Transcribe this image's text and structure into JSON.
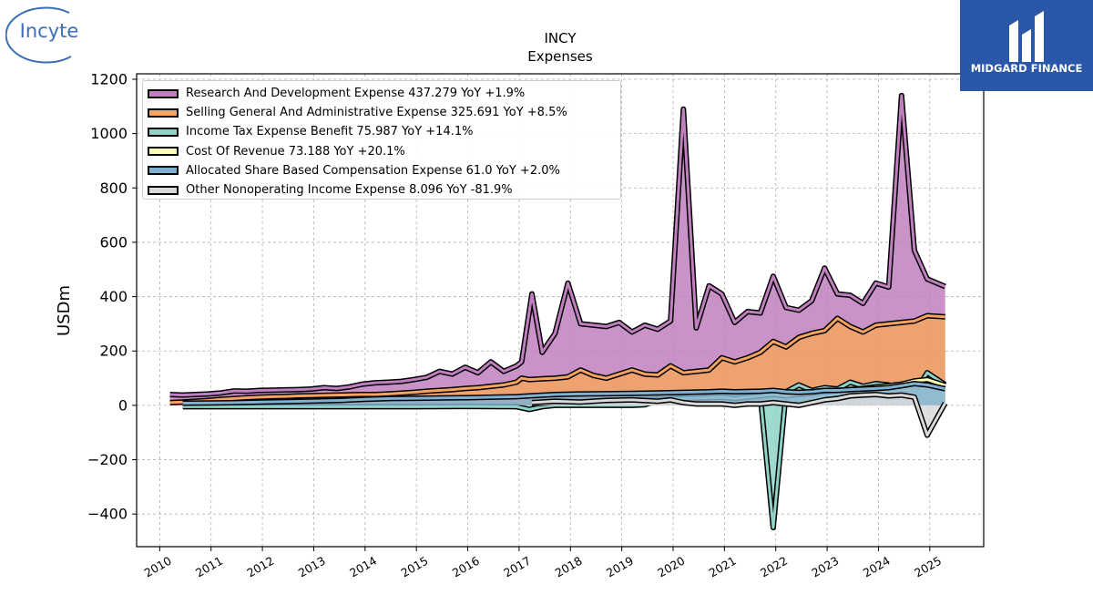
{
  "brand": {
    "logo_text": "Incyte",
    "watermark_text": "MIDGARD FINANCE"
  },
  "chart_data": {
    "type": "area",
    "title": "INCY",
    "subtitle": "Expenses",
    "xlabel": "",
    "ylabel": "USDm",
    "xlim": [
      2009.55,
      2026.05
    ],
    "ylim": [
      -520,
      1220
    ],
    "x_ticks": [
      "2010",
      "2011",
      "2012",
      "2013",
      "2014",
      "2015",
      "2016",
      "2017",
      "2018",
      "2019",
      "2020",
      "2021",
      "2022",
      "2023",
      "2024",
      "2025"
    ],
    "y_ticks": [
      -400,
      -200,
      0,
      200,
      400,
      600,
      800,
      1000,
      1200
    ],
    "grid": true,
    "legend_position": "top-left",
    "series": [
      {
        "name": "Research And Development Expense",
        "legend": "Research And Development Expense  437.279 YoY +1.9%",
        "color": "#c080c0",
        "points": [
          [
            2010.2,
            40
          ],
          [
            2010.45,
            38
          ],
          [
            2010.7,
            40
          ],
          [
            2010.95,
            42
          ],
          [
            2011.2,
            46
          ],
          [
            2011.45,
            53
          ],
          [
            2011.7,
            52
          ],
          [
            2011.95,
            55
          ],
          [
            2012.2,
            56
          ],
          [
            2012.45,
            57
          ],
          [
            2012.7,
            58
          ],
          [
            2012.95,
            60
          ],
          [
            2013.2,
            65
          ],
          [
            2013.45,
            62
          ],
          [
            2013.7,
            68
          ],
          [
            2013.95,
            78
          ],
          [
            2014.2,
            83
          ],
          [
            2014.45,
            85
          ],
          [
            2014.7,
            88
          ],
          [
            2014.95,
            95
          ],
          [
            2015.2,
            103
          ],
          [
            2015.45,
            125
          ],
          [
            2015.7,
            115
          ],
          [
            2015.95,
            140
          ],
          [
            2016.2,
            120
          ],
          [
            2016.45,
            160
          ],
          [
            2016.7,
            125
          ],
          [
            2016.95,
            145
          ],
          [
            2017.05,
            160
          ],
          [
            2017.25,
            410
          ],
          [
            2017.45,
            195
          ],
          [
            2017.7,
            265
          ],
          [
            2017.95,
            450
          ],
          [
            2018.2,
            300
          ],
          [
            2018.45,
            295
          ],
          [
            2018.7,
            290
          ],
          [
            2018.95,
            305
          ],
          [
            2019.2,
            270
          ],
          [
            2019.45,
            295
          ],
          [
            2019.7,
            280
          ],
          [
            2019.95,
            310
          ],
          [
            2020.2,
            1090
          ],
          [
            2020.45,
            285
          ],
          [
            2020.7,
            440
          ],
          [
            2020.95,
            410
          ],
          [
            2021.2,
            305
          ],
          [
            2021.45,
            345
          ],
          [
            2021.7,
            340
          ],
          [
            2021.95,
            475
          ],
          [
            2022.2,
            360
          ],
          [
            2022.45,
            350
          ],
          [
            2022.7,
            385
          ],
          [
            2022.95,
            505
          ],
          [
            2023.2,
            410
          ],
          [
            2023.45,
            405
          ],
          [
            2023.7,
            375
          ],
          [
            2023.95,
            450
          ],
          [
            2024.2,
            435
          ],
          [
            2024.45,
            1140
          ],
          [
            2024.7,
            570
          ],
          [
            2024.95,
            465
          ],
          [
            2025.3,
            437
          ]
        ]
      },
      {
        "name": "Selling General And Administrative Expense",
        "legend": "Selling General And Administrative Expense  325.691 YoY +8.5%",
        "color": "#f4a460",
        "points": [
          [
            2010.2,
            10
          ],
          [
            2010.45,
            12
          ],
          [
            2010.7,
            15
          ],
          [
            2010.95,
            18
          ],
          [
            2011.2,
            22
          ],
          [
            2011.45,
            25
          ],
          [
            2011.7,
            28
          ],
          [
            2011.95,
            30
          ],
          [
            2012.2,
            32
          ],
          [
            2012.45,
            33
          ],
          [
            2012.7,
            35
          ],
          [
            2012.95,
            36
          ],
          [
            2013.2,
            37
          ],
          [
            2013.45,
            38
          ],
          [
            2013.7,
            39
          ],
          [
            2013.95,
            40
          ],
          [
            2014.2,
            40
          ],
          [
            2014.45,
            42
          ],
          [
            2014.7,
            45
          ],
          [
            2014.95,
            48
          ],
          [
            2015.2,
            52
          ],
          [
            2015.45,
            55
          ],
          [
            2015.7,
            58
          ],
          [
            2015.95,
            62
          ],
          [
            2016.2,
            65
          ],
          [
            2016.45,
            70
          ],
          [
            2016.7,
            75
          ],
          [
            2016.95,
            85
          ],
          [
            2017.05,
            100
          ],
          [
            2017.2,
            95
          ],
          [
            2017.45,
            98
          ],
          [
            2017.7,
            100
          ],
          [
            2017.95,
            105
          ],
          [
            2018.2,
            130
          ],
          [
            2018.45,
            110
          ],
          [
            2018.7,
            100
          ],
          [
            2018.95,
            115
          ],
          [
            2019.2,
            130
          ],
          [
            2019.45,
            115
          ],
          [
            2019.7,
            112
          ],
          [
            2019.95,
            145
          ],
          [
            2020.2,
            120
          ],
          [
            2020.45,
            125
          ],
          [
            2020.7,
            130
          ],
          [
            2020.95,
            175
          ],
          [
            2021.2,
            160
          ],
          [
            2021.45,
            175
          ],
          [
            2021.7,
            195
          ],
          [
            2021.95,
            235
          ],
          [
            2022.2,
            215
          ],
          [
            2022.45,
            250
          ],
          [
            2022.7,
            265
          ],
          [
            2022.95,
            275
          ],
          [
            2023.2,
            320
          ],
          [
            2023.45,
            290
          ],
          [
            2023.7,
            270
          ],
          [
            2023.95,
            295
          ],
          [
            2024.2,
            300
          ],
          [
            2024.45,
            305
          ],
          [
            2024.7,
            310
          ],
          [
            2024.95,
            330
          ],
          [
            2025.3,
            326
          ]
        ]
      },
      {
        "name": "Income Tax Expense Benefit",
        "legend": "Income Tax Expense Benefit  75.987 YoY +14.1%",
        "color": "#8dd3c7",
        "points": [
          [
            2010.45,
            -5
          ],
          [
            2011.0,
            -5
          ],
          [
            2012.0,
            -5
          ],
          [
            2013.0,
            -5
          ],
          [
            2014.0,
            -5
          ],
          [
            2015.0,
            -5
          ],
          [
            2016.0,
            -4
          ],
          [
            2016.95,
            -5
          ],
          [
            2017.2,
            -15
          ],
          [
            2017.45,
            -5
          ],
          [
            2017.7,
            0
          ],
          [
            2017.95,
            0
          ],
          [
            2018.2,
            0
          ],
          [
            2018.45,
            0
          ],
          [
            2018.7,
            0
          ],
          [
            2018.95,
            0
          ],
          [
            2019.2,
            0
          ],
          [
            2019.45,
            2
          ],
          [
            2019.7,
            20
          ],
          [
            2019.95,
            25
          ],
          [
            2020.2,
            30
          ],
          [
            2020.45,
            35
          ],
          [
            2020.7,
            30
          ],
          [
            2020.95,
            35
          ],
          [
            2021.2,
            35
          ],
          [
            2021.45,
            40
          ],
          [
            2021.7,
            35
          ],
          [
            2021.95,
            -450
          ],
          [
            2022.2,
            50
          ],
          [
            2022.45,
            75
          ],
          [
            2022.7,
            55
          ],
          [
            2022.95,
            65
          ],
          [
            2023.2,
            60
          ],
          [
            2023.45,
            85
          ],
          [
            2023.7,
            70
          ],
          [
            2023.95,
            80
          ],
          [
            2024.2,
            75
          ],
          [
            2024.45,
            65
          ],
          [
            2024.7,
            45
          ],
          [
            2024.95,
            120
          ],
          [
            2025.3,
            76
          ]
        ]
      },
      {
        "name": "Cost Of Revenue",
        "legend": "Cost Of Revenue  73.188 YoY +20.1%",
        "color": "#ffffb3",
        "points": [
          [
            2017.25,
            5
          ],
          [
            2017.7,
            10
          ],
          [
            2018.2,
            12
          ],
          [
            2018.7,
            15
          ],
          [
            2019.2,
            18
          ],
          [
            2019.7,
            22
          ],
          [
            2020.2,
            25
          ],
          [
            2020.7,
            28
          ],
          [
            2020.95,
            30
          ],
          [
            2021.2,
            25
          ],
          [
            2021.45,
            30
          ],
          [
            2021.7,
            35
          ],
          [
            2021.95,
            40
          ],
          [
            2022.2,
            35
          ],
          [
            2022.45,
            40
          ],
          [
            2022.7,
            45
          ],
          [
            2022.95,
            50
          ],
          [
            2023.2,
            55
          ],
          [
            2023.45,
            58
          ],
          [
            2023.7,
            62
          ],
          [
            2023.95,
            68
          ],
          [
            2024.2,
            72
          ],
          [
            2024.45,
            78
          ],
          [
            2024.7,
            90
          ],
          [
            2024.95,
            95
          ],
          [
            2025.3,
            73
          ]
        ]
      },
      {
        "name": "Allocated Share Based Compensation Expense",
        "legend": "Allocated Share Based Compensation Expense  61.0 YoY +2.0%",
        "color": "#80b1d3",
        "points": [
          [
            2010.45,
            8
          ],
          [
            2011.0,
            9
          ],
          [
            2011.5,
            10
          ],
          [
            2012.0,
            12
          ],
          [
            2012.5,
            14
          ],
          [
            2013.0,
            16
          ],
          [
            2013.5,
            18
          ],
          [
            2014.0,
            22
          ],
          [
            2014.5,
            25
          ],
          [
            2015.0,
            26
          ],
          [
            2015.5,
            27
          ],
          [
            2016.0,
            28
          ],
          [
            2016.5,
            30
          ],
          [
            2016.95,
            32
          ],
          [
            2017.2,
            35
          ],
          [
            2017.7,
            40
          ],
          [
            2018.2,
            42
          ],
          [
            2018.7,
            43
          ],
          [
            2019.2,
            44
          ],
          [
            2019.7,
            46
          ],
          [
            2020.2,
            48
          ],
          [
            2020.7,
            50
          ],
          [
            2020.95,
            52
          ],
          [
            2021.2,
            50
          ],
          [
            2021.7,
            52
          ],
          [
            2021.95,
            55
          ],
          [
            2022.2,
            50
          ],
          [
            2022.45,
            48
          ],
          [
            2022.7,
            50
          ],
          [
            2022.95,
            55
          ],
          [
            2023.2,
            55
          ],
          [
            2023.45,
            58
          ],
          [
            2023.7,
            60
          ],
          [
            2023.95,
            62
          ],
          [
            2024.2,
            65
          ],
          [
            2024.45,
            72
          ],
          [
            2024.7,
            80
          ],
          [
            2024.95,
            75
          ],
          [
            2025.3,
            61
          ]
        ]
      },
      {
        "name": "Other Nonoperating Income Expense",
        "legend": "Other Nonoperating Income Expense  8.096 YoY -81.9%",
        "color": "#d9d9d9",
        "points": [
          [
            2017.25,
            10
          ],
          [
            2017.7,
            15
          ],
          [
            2018.2,
            12
          ],
          [
            2018.7,
            18
          ],
          [
            2019.2,
            20
          ],
          [
            2019.7,
            15
          ],
          [
            2019.95,
            20
          ],
          [
            2020.2,
            10
          ],
          [
            2020.45,
            5
          ],
          [
            2020.7,
            5
          ],
          [
            2020.95,
            5
          ],
          [
            2021.2,
            0
          ],
          [
            2021.45,
            5
          ],
          [
            2021.7,
            5
          ],
          [
            2021.95,
            10
          ],
          [
            2022.2,
            5
          ],
          [
            2022.45,
            0
          ],
          [
            2022.7,
            10
          ],
          [
            2022.95,
            20
          ],
          [
            2023.2,
            25
          ],
          [
            2023.45,
            35
          ],
          [
            2023.7,
            38
          ],
          [
            2023.95,
            40
          ],
          [
            2024.2,
            35
          ],
          [
            2024.45,
            38
          ],
          [
            2024.7,
            30
          ],
          [
            2024.95,
            -110
          ],
          [
            2025.3,
            8
          ]
        ]
      }
    ]
  }
}
